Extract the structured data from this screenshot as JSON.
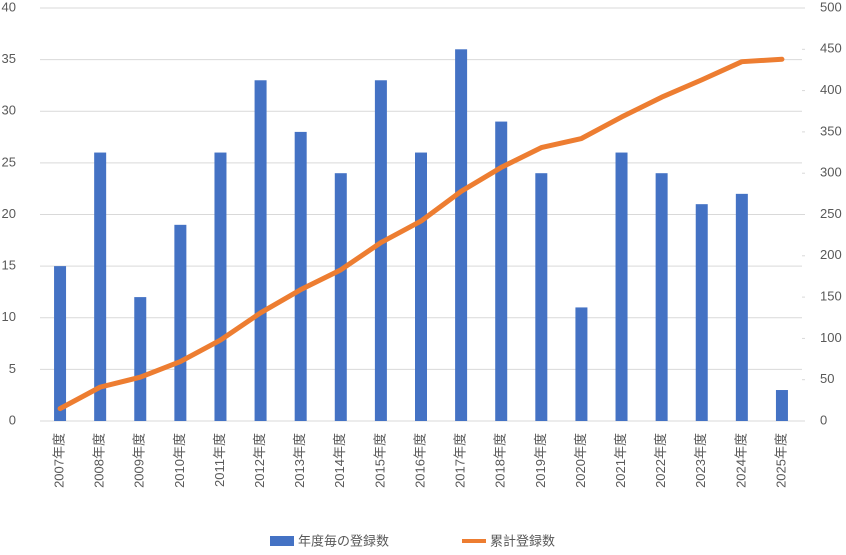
{
  "chart_data": {
    "type": "bar-line",
    "categories": [
      "2007年度",
      "2008年度",
      "2009年度",
      "2010年度",
      "2011年度",
      "2012年度",
      "2013年度",
      "2014年度",
      "2015年度",
      "2016年度",
      "2017年度",
      "2018年度",
      "2019年度",
      "2020年度",
      "2021年度",
      "2022年度",
      "2023年度",
      "2024年度",
      "2025年度"
    ],
    "series": [
      {
        "name": "年度毎の登録数",
        "color": "#4472c4",
        "type": "bar",
        "values": [
          15,
          26,
          12,
          19,
          26,
          33,
          28,
          24,
          33,
          26,
          36,
          29,
          24,
          11,
          26,
          24,
          21,
          22,
          3
        ]
      },
      {
        "name": "累計登録数",
        "color": "#ed7d31",
        "type": "line",
        "axis": "y2",
        "values": [
          15,
          41,
          53,
          72,
          98,
          131,
          159,
          183,
          216,
          242,
          278,
          307,
          331,
          342,
          368,
          392,
          413,
          435,
          438
        ]
      }
    ],
    "ylim": [
      0,
      40
    ],
    "yticks": [
      0,
      5,
      10,
      15,
      20,
      25,
      30,
      35,
      40
    ],
    "y2lim": [
      0,
      500
    ],
    "y2ticks": [
      0,
      50,
      100,
      150,
      200,
      250,
      300,
      350,
      400,
      450,
      500
    ],
    "grid": true,
    "legend": "bottom"
  }
}
